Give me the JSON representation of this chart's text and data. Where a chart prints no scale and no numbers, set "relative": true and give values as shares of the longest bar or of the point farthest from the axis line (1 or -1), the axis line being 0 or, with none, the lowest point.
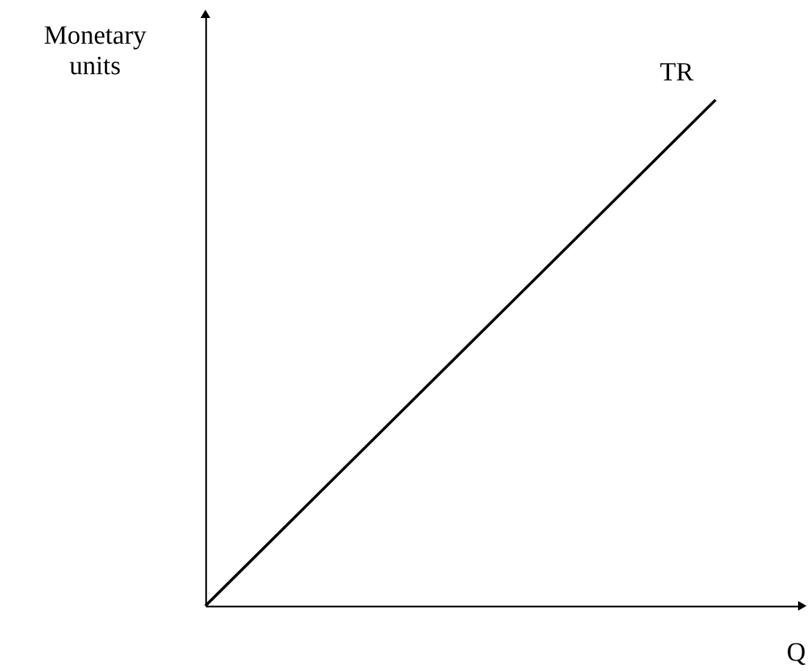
{
  "chart_data": {
    "type": "line",
    "relative": true,
    "xlabel": "Q",
    "ylabel": "Monetary units",
    "categories": [
      null,
      null
    ],
    "series": [
      {
        "name": "TR",
        "color": "#000000",
        "values": [
          0,
          1
        ]
      }
    ]
  }
}
